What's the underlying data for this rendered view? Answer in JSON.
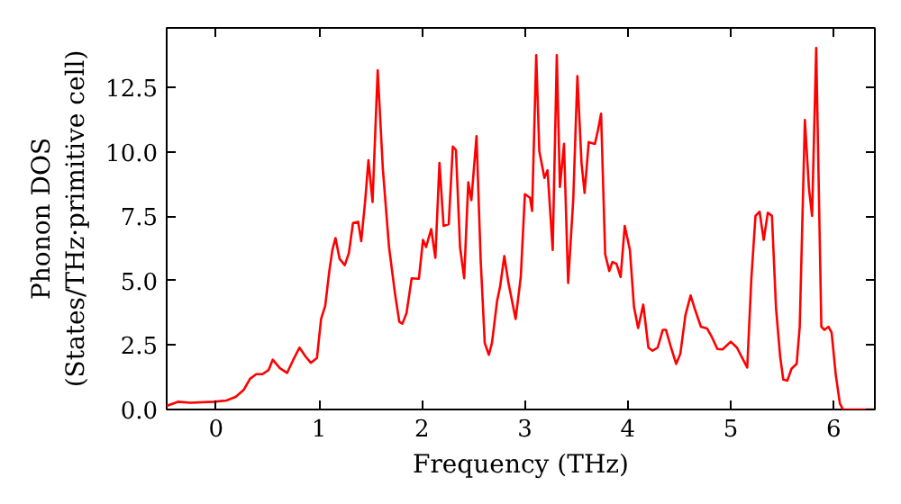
{
  "chart_data": {
    "type": "line",
    "xlabel": "Frequency (THz)",
    "ylabel": "Phonon DOS\n(States/THz·primitive cell)",
    "xlim": [
      -0.48,
      6.4
    ],
    "ylim": [
      0,
      14.8
    ],
    "xticks": [
      0,
      1,
      2,
      3,
      4,
      5,
      6
    ],
    "yticks": [
      {
        "value": 0,
        "label": "0.0"
      },
      {
        "value": 2.5,
        "label": "2.5"
      },
      {
        "value": 5,
        "label": "5.0"
      },
      {
        "value": 7.5,
        "label": "7.5"
      },
      {
        "value": 10,
        "label": "10.0"
      },
      {
        "value": 12.5,
        "label": "12.5"
      }
    ],
    "grid": false,
    "series": [
      {
        "color": "#ff0000",
        "x": [
          -0.48,
          -0.37,
          -0.25,
          -0.02,
          0.1,
          0.19,
          0.27,
          0.33,
          0.39,
          0.45,
          0.51,
          0.55,
          0.62,
          0.69,
          0.75,
          0.81,
          0.87,
          0.92,
          0.98,
          1.02,
          1.06,
          1.1,
          1.13,
          1.16,
          1.2,
          1.25,
          1.29,
          1.33,
          1.38,
          1.41,
          1.45,
          1.48,
          1.52,
          1.57,
          1.62,
          1.68,
          1.74,
          1.78,
          1.81,
          1.85,
          1.9,
          1.97,
          2.01,
          2.04,
          2.09,
          2.13,
          2.17,
          2.21,
          2.26,
          2.3,
          2.33,
          2.37,
          2.41,
          2.45,
          2.48,
          2.53,
          2.57,
          2.61,
          2.65,
          2.68,
          2.73,
          2.76,
          2.8,
          2.84,
          2.91,
          2.96,
          3.0,
          3.05,
          3.07,
          3.11,
          3.14,
          3.19,
          3.22,
          3.27,
          3.31,
          3.34,
          3.38,
          3.42,
          3.47,
          3.51,
          3.55,
          3.58,
          3.62,
          3.68,
          3.71,
          3.74,
          3.78,
          3.82,
          3.85,
          3.89,
          3.93,
          3.97,
          4.02,
          4.06,
          4.1,
          4.15,
          4.2,
          4.24,
          4.29,
          4.34,
          4.37,
          4.42,
          4.47,
          4.51,
          4.56,
          4.61,
          4.65,
          4.71,
          4.77,
          4.81,
          4.87,
          4.92,
          5.0,
          5.06,
          5.12,
          5.16,
          5.2,
          5.24,
          5.28,
          5.32,
          5.36,
          5.4,
          5.44,
          5.48,
          5.51,
          5.55,
          5.59,
          5.64,
          5.67,
          5.72,
          5.76,
          5.79,
          5.83,
          5.88,
          5.91,
          5.95,
          5.98,
          6.02,
          6.06,
          6.09,
          6.4
        ],
        "values": [
          0.14,
          0.3,
          0.26,
          0.3,
          0.35,
          0.49,
          0.77,
          1.19,
          1.37,
          1.37,
          1.53,
          1.93,
          1.6,
          1.42,
          1.93,
          2.4,
          2.05,
          1.81,
          2.0,
          3.51,
          4.02,
          5.37,
          6.19,
          6.65,
          5.84,
          5.6,
          6.07,
          7.23,
          7.28,
          6.53,
          8.16,
          9.67,
          8.05,
          13.16,
          9.33,
          6.3,
          4.44,
          3.4,
          3.33,
          3.74,
          5.09,
          5.07,
          6.58,
          6.3,
          7.0,
          5.88,
          9.56,
          7.12,
          7.19,
          10.2,
          10.07,
          6.3,
          5.09,
          8.81,
          8.12,
          10.6,
          5.84,
          2.58,
          2.12,
          2.58,
          4.21,
          4.79,
          5.95,
          4.91,
          3.51,
          5.14,
          8.35,
          8.21,
          7.7,
          13.74,
          10.02,
          8.98,
          9.28,
          6.19,
          13.74,
          8.63,
          10.3,
          4.91,
          8.16,
          12.93,
          9.56,
          8.4,
          10.37,
          10.3,
          10.84,
          11.47,
          6.02,
          5.37,
          5.72,
          5.65,
          5.14,
          7.12,
          6.19,
          3.98,
          3.16,
          4.07,
          2.4,
          2.28,
          2.4,
          3.09,
          3.09,
          2.4,
          1.77,
          2.16,
          3.67,
          4.42,
          3.91,
          3.21,
          3.14,
          2.86,
          2.35,
          2.33,
          2.63,
          2.4,
          1.93,
          1.63,
          5.07,
          7.51,
          7.67,
          6.58,
          7.63,
          7.51,
          3.91,
          2.05,
          1.16,
          1.12,
          1.58,
          1.77,
          3.21,
          11.23,
          8.56,
          7.51,
          14.02,
          3.21,
          3.09,
          3.21,
          2.98,
          1.35,
          0.23,
          0,
          0
        ]
      }
    ]
  }
}
